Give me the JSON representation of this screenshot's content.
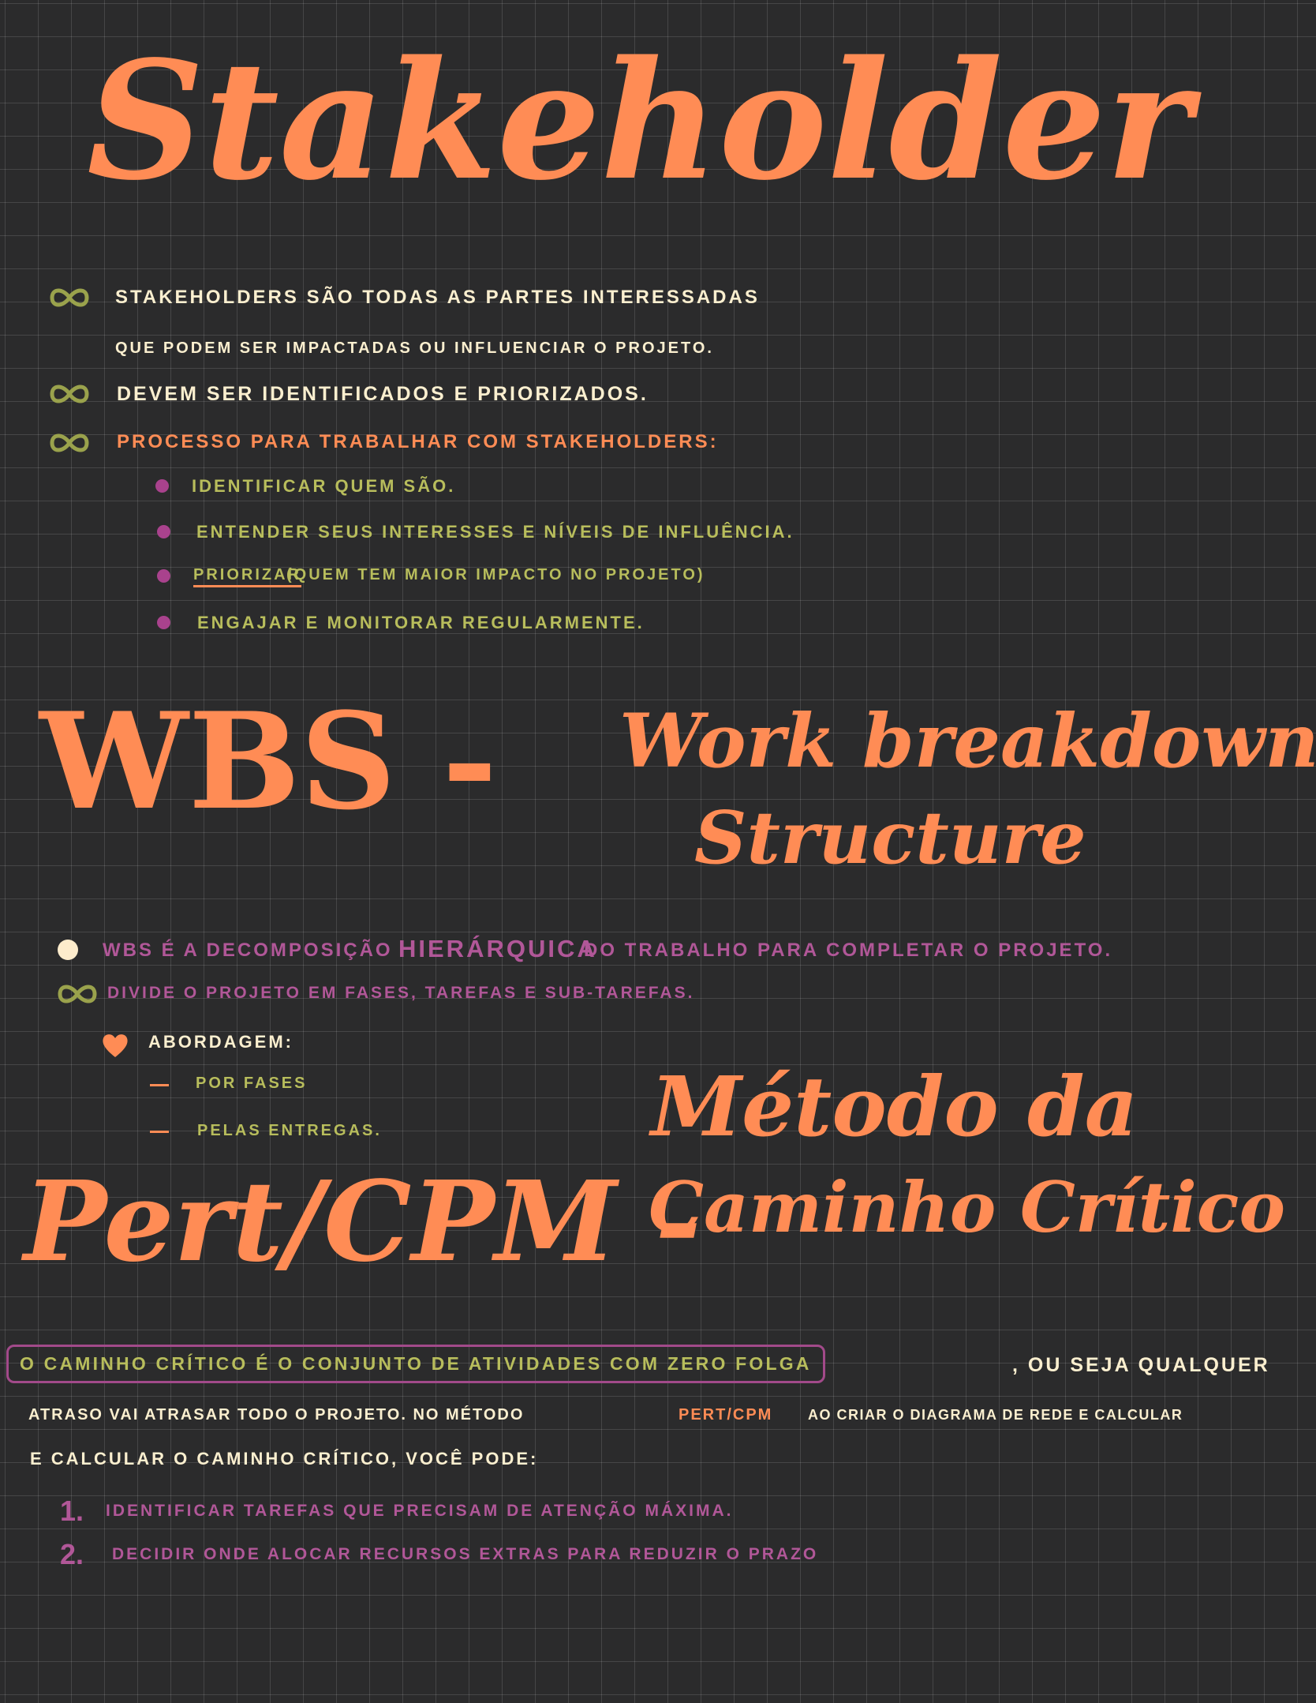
{
  "stakeholder": {
    "title": "Stakeholder",
    "bullets": [
      "Stakeholders são todas as partes interessadas",
      "que podem ser impactadas ou influenciar o projeto.",
      "Devem ser identificados e priorizados.",
      "Processo para trabalhar com stakeholders:"
    ],
    "steps": [
      "identificar quem são.",
      "entender seus interesses e níveis de influência.",
      "priorizar",
      "(quem tem maior impacto no projeto)",
      "engajar e monitorar regularmente."
    ]
  },
  "wbs": {
    "acronym": "WBS -",
    "expansion_line1": "Work breakdown",
    "expansion_line2": "Structure",
    "bullets": [
      "WBS é a decomposição",
      "hierárquica",
      "do trabalho para completar o projeto.",
      "Divide o projeto em fases, tarefas e sub-tarefas."
    ],
    "approach_label": "Abordagem:",
    "approaches": [
      "por fases",
      "pelas entregas."
    ]
  },
  "pert": {
    "acronym": "Pert/CPM -",
    "method_line1": "Método da",
    "method_line2": "Caminho Crítico",
    "boxed": "O caminho crítico é o conjunto de atividades com zero folga",
    "para_1": ", ou seja qualquer",
    "para_2a": "atraso vai atrasar todo o projeto. No método",
    "para_2b": "Pert/CPM",
    "para_2c": "ao criar o diagrama de rede e calcular",
    "para_3": "e calcular o caminho crítico, você pode:",
    "list": [
      {
        "num": "1.",
        "text": "identificar tarefas que precisam de atenção máxima."
      },
      {
        "num": "2.",
        "text": "decidir onde alocar recursos extras para reduzir o prazo"
      }
    ]
  }
}
